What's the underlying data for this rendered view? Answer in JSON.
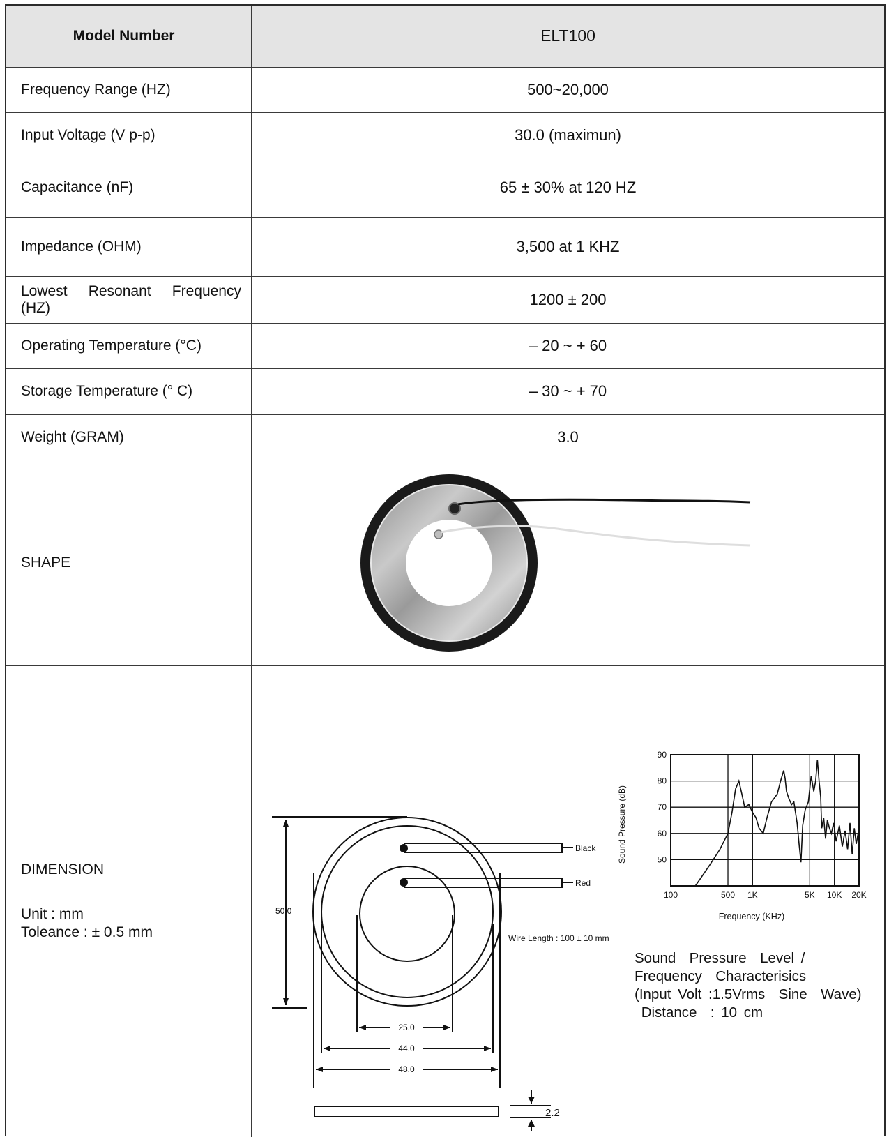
{
  "header": {
    "label": "Model Number",
    "value": "ELT100"
  },
  "specs": [
    {
      "label": "Frequency  Range  (HZ)",
      "value": "500~20,000"
    },
    {
      "label": "Input  Voltage  (V p-p)",
      "value": "30.0  (maximun)"
    },
    {
      "label": "Capacitance  (nF)",
      "value": "65 ± 30% at  120  HZ"
    },
    {
      "label": "Impedance  (OHM)",
      "value": "3,500  at  1  KHZ"
    },
    {
      "label": "Lowest  Resonant  Frequency (HZ)",
      "value": "1200 ± 200"
    },
    {
      "label": "Operating  Temperature  (°C)",
      "value": "– 20 ~ + 60"
    },
    {
      "label": "Storage  Temperature  (° C)",
      "value": "– 30 ~ + 70"
    },
    {
      "label": "Weight  (GRAM)",
      "value": "3.0"
    }
  ],
  "shape": {
    "label": "SHAPE"
  },
  "dimension": {
    "label": "DIMENSION",
    "unit": "Unit :  mm",
    "tolerance": "Toleance : ± 0.5 mm",
    "drawing": {
      "black_wire": "Black",
      "red_wire": "Red",
      "height": "50.0",
      "inner_dia": "25.0",
      "mid_dia": "44.0",
      "outer_dia": "48.0",
      "thickness": "2.2",
      "wire_length": "Wire  Length  :  100 ± 10 mm"
    },
    "spl_caption": [
      "Sound  Pressure  Level /",
      "Frequency  Characterisics",
      "(Input Volt :1.5Vrms  Sine  Wave)",
      " Distance  : 10 cm"
    ]
  },
  "chart_data": {
    "type": "line",
    "title": "",
    "xlabel": "Frequency (KHz)",
    "ylabel": "Sound Pressure (dB)",
    "x_scale": "log",
    "xlim": [
      100,
      20000
    ],
    "ylim": [
      40,
      90
    ],
    "x_ticks": [
      {
        "value": 100,
        "label": "100"
      },
      {
        "value": 500,
        "label": "500"
      },
      {
        "value": 1000,
        "label": "1K"
      },
      {
        "value": 5000,
        "label": "5K"
      },
      {
        "value": 10000,
        "label": "10K"
      },
      {
        "value": 20000,
        "label": "20K"
      }
    ],
    "y_ticks": [
      50,
      60,
      70,
      80,
      90
    ],
    "grid": true,
    "series": [
      {
        "x": [
          200,
          300,
          400,
          500,
          560,
          620,
          680,
          740,
          800,
          900,
          1000,
          1100,
          1200,
          1350,
          1500,
          1700,
          2000,
          2200,
          2400,
          2500,
          2600,
          2800,
          3000,
          3200,
          3500,
          3700,
          3900,
          4100,
          4400,
          4800,
          5200,
          5600,
          5900,
          6200,
          6500,
          6800,
          7000,
          7400,
          7800,
          8200,
          8700,
          9200,
          9800,
          10500,
          11500,
          12500,
          13500,
          14500,
          15500,
          16500,
          17500,
          18500,
          19500
        ],
        "y": [
          40,
          48,
          54,
          60,
          68,
          77,
          80,
          75,
          70,
          71,
          68,
          66,
          62,
          60,
          66,
          72,
          75,
          80,
          84,
          81,
          76,
          73,
          71,
          72,
          64,
          56,
          49,
          63,
          69,
          72,
          82,
          76,
          80,
          88,
          80,
          74,
          62,
          66,
          58,
          65,
          62,
          60,
          64,
          57,
          63,
          55,
          61,
          54,
          64,
          52,
          62,
          56,
          60
        ]
      }
    ]
  }
}
